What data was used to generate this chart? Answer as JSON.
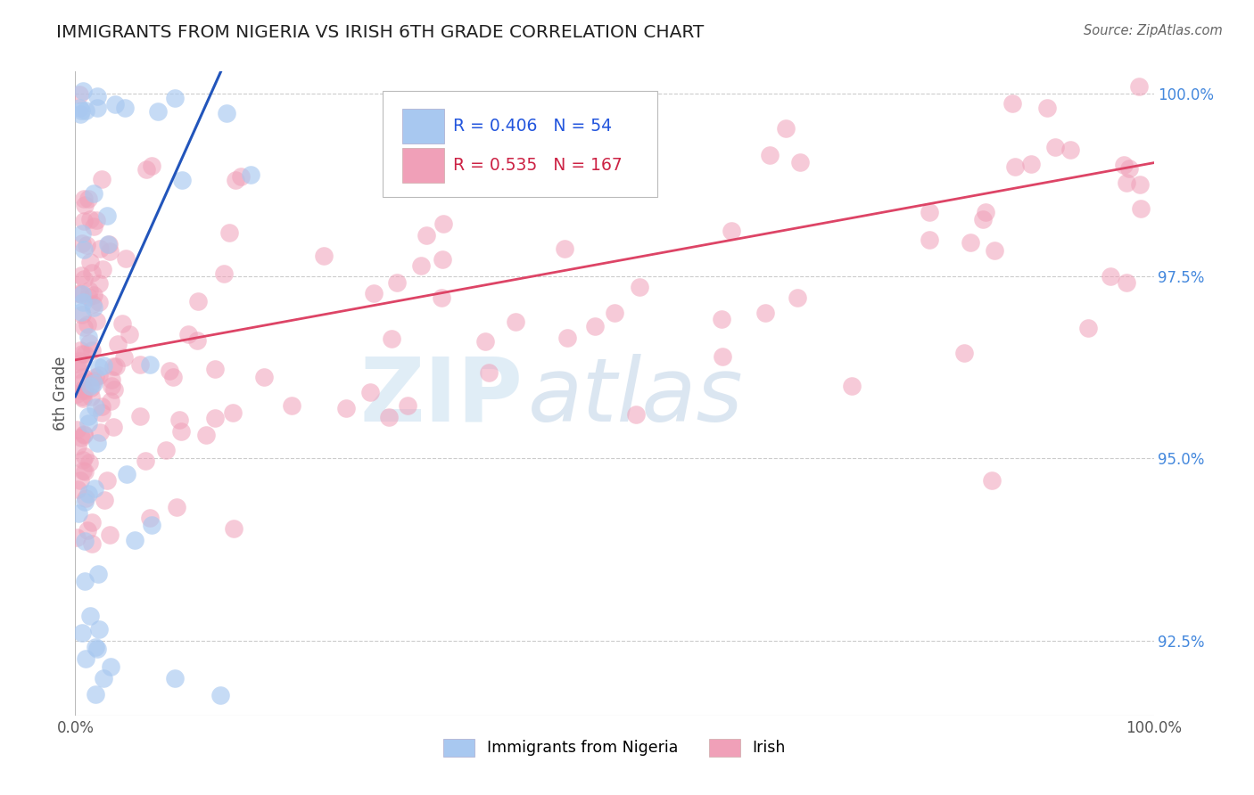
{
  "title": "IMMIGRANTS FROM NIGERIA VS IRISH 6TH GRADE CORRELATION CHART",
  "source_text": "Source: ZipAtlas.com",
  "ylabel": "6th Grade",
  "xmin": 0.0,
  "xmax": 1.0,
  "ymin": 0.9148,
  "ymax": 1.003,
  "yticks": [
    0.925,
    0.95,
    0.975,
    1.0
  ],
  "ytick_labels": [
    "92.5%",
    "95.0%",
    "97.5%",
    "100.0%"
  ],
  "legend_r_blue": "R = 0.406",
  "legend_n_blue": "N = 54",
  "legend_r_pink": "R = 0.535",
  "legend_n_pink": "N = 167",
  "blue_color": "#a8c8f0",
  "pink_color": "#f0a0b8",
  "blue_line_color": "#2255bb",
  "pink_line_color": "#dd4466",
  "watermark_zip": "ZIP",
  "watermark_atlas": "atlas",
  "blue_line_x": [
    0.0,
    0.135
  ],
  "blue_line_y": [
    0.9585,
    1.003
  ],
  "pink_line_x": [
    0.0,
    1.0
  ],
  "pink_line_y": [
    0.9635,
    0.9905
  ]
}
